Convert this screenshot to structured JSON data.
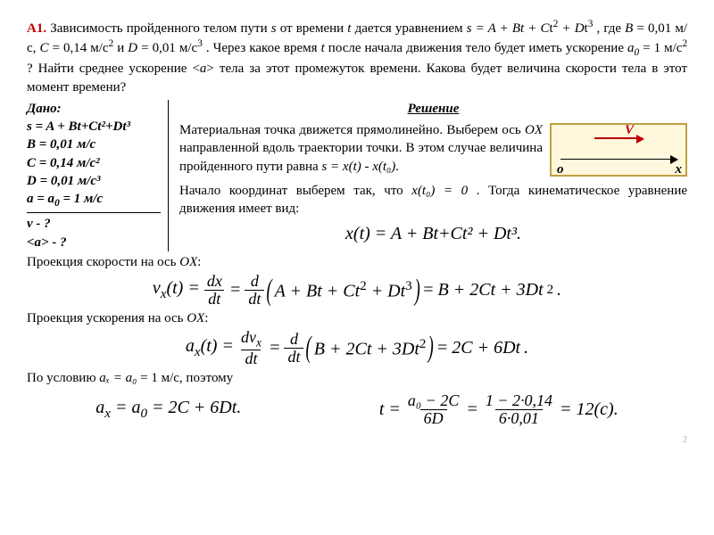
{
  "problem": {
    "num": "А1.",
    "text_1": " Зависимость пройденного телом пути ",
    "text_2": " от времени ",
    "text_3": " дается уравнением ",
    "text_4": ", где ",
    "text_5": " = 0,01 м/с, ",
    "text_6": " = 0,14 м/с",
    "text_7": " и ",
    "text_8": " = 0,01 м/с",
    "text_9": ". Через какое время ",
    "text_10": " после начала движения тело будет иметь ускорение ",
    "text_11": " = 1 м/с",
    "text_12": "? Найти среднее ускорение ",
    "text_13": " тела за этот промежуток времени. Какова будет величина скорости тела в этот момент времени?"
  },
  "given": {
    "title": "Дано:",
    "l1": "s = A + Bt+Сt²+Dt³",
    "l2": "B = 0,01 м/с",
    "l3": "C = 0,14 м/с²",
    "l4": "D = 0,01 м/с³",
    "l5_a": "a = a",
    "l5_b": " = 1 м/с",
    "l6": " v - ?",
    "l7": "<a> - ?"
  },
  "solution": {
    "title": "Решение",
    "step1_a": "Материальная точка движется прямолинейно. Выберем ось ",
    "step1_b": " направленной вдоль траектории точки. В этом случае величина пройденного пути равна ",
    "step1_eq": "s = x(t)  - x(t₀)",
    "step2_a": "Начало координат выберем так, что ",
    "step2_eq": "x(t₀) = 0",
    "step2_b": ". Тогда кинематическое уравнение движения имеет вид:",
    "eq_kin": "x(t) = A + Bt+Сt² + Dt³.",
    "proj_v": "Проекция скорости на ось ",
    "proj_a": "Проекция ускорения на ось ",
    "ox": "OX",
    "cond": "По условию ",
    "cond_eq": "aₓ = a₀",
    "cond_b": " = 1 м/с, поэтому",
    "vx": "v",
    "ax": "a",
    "deriv_v_rhs": "B + 2Ct + 3Dt",
    "deriv_a_rhs": "2C + 6Dt",
    "final_a": "a",
    "final_eq1": " = 2C + 6Dt.",
    "t_eq": "t",
    "t_num1": "a₀ − 2C",
    "t_den1": "6D",
    "t_num2": "1 − 2·0,14",
    "t_den2": "6·0,01",
    "t_res": " = 12(c)."
  },
  "pagenum": "2"
}
